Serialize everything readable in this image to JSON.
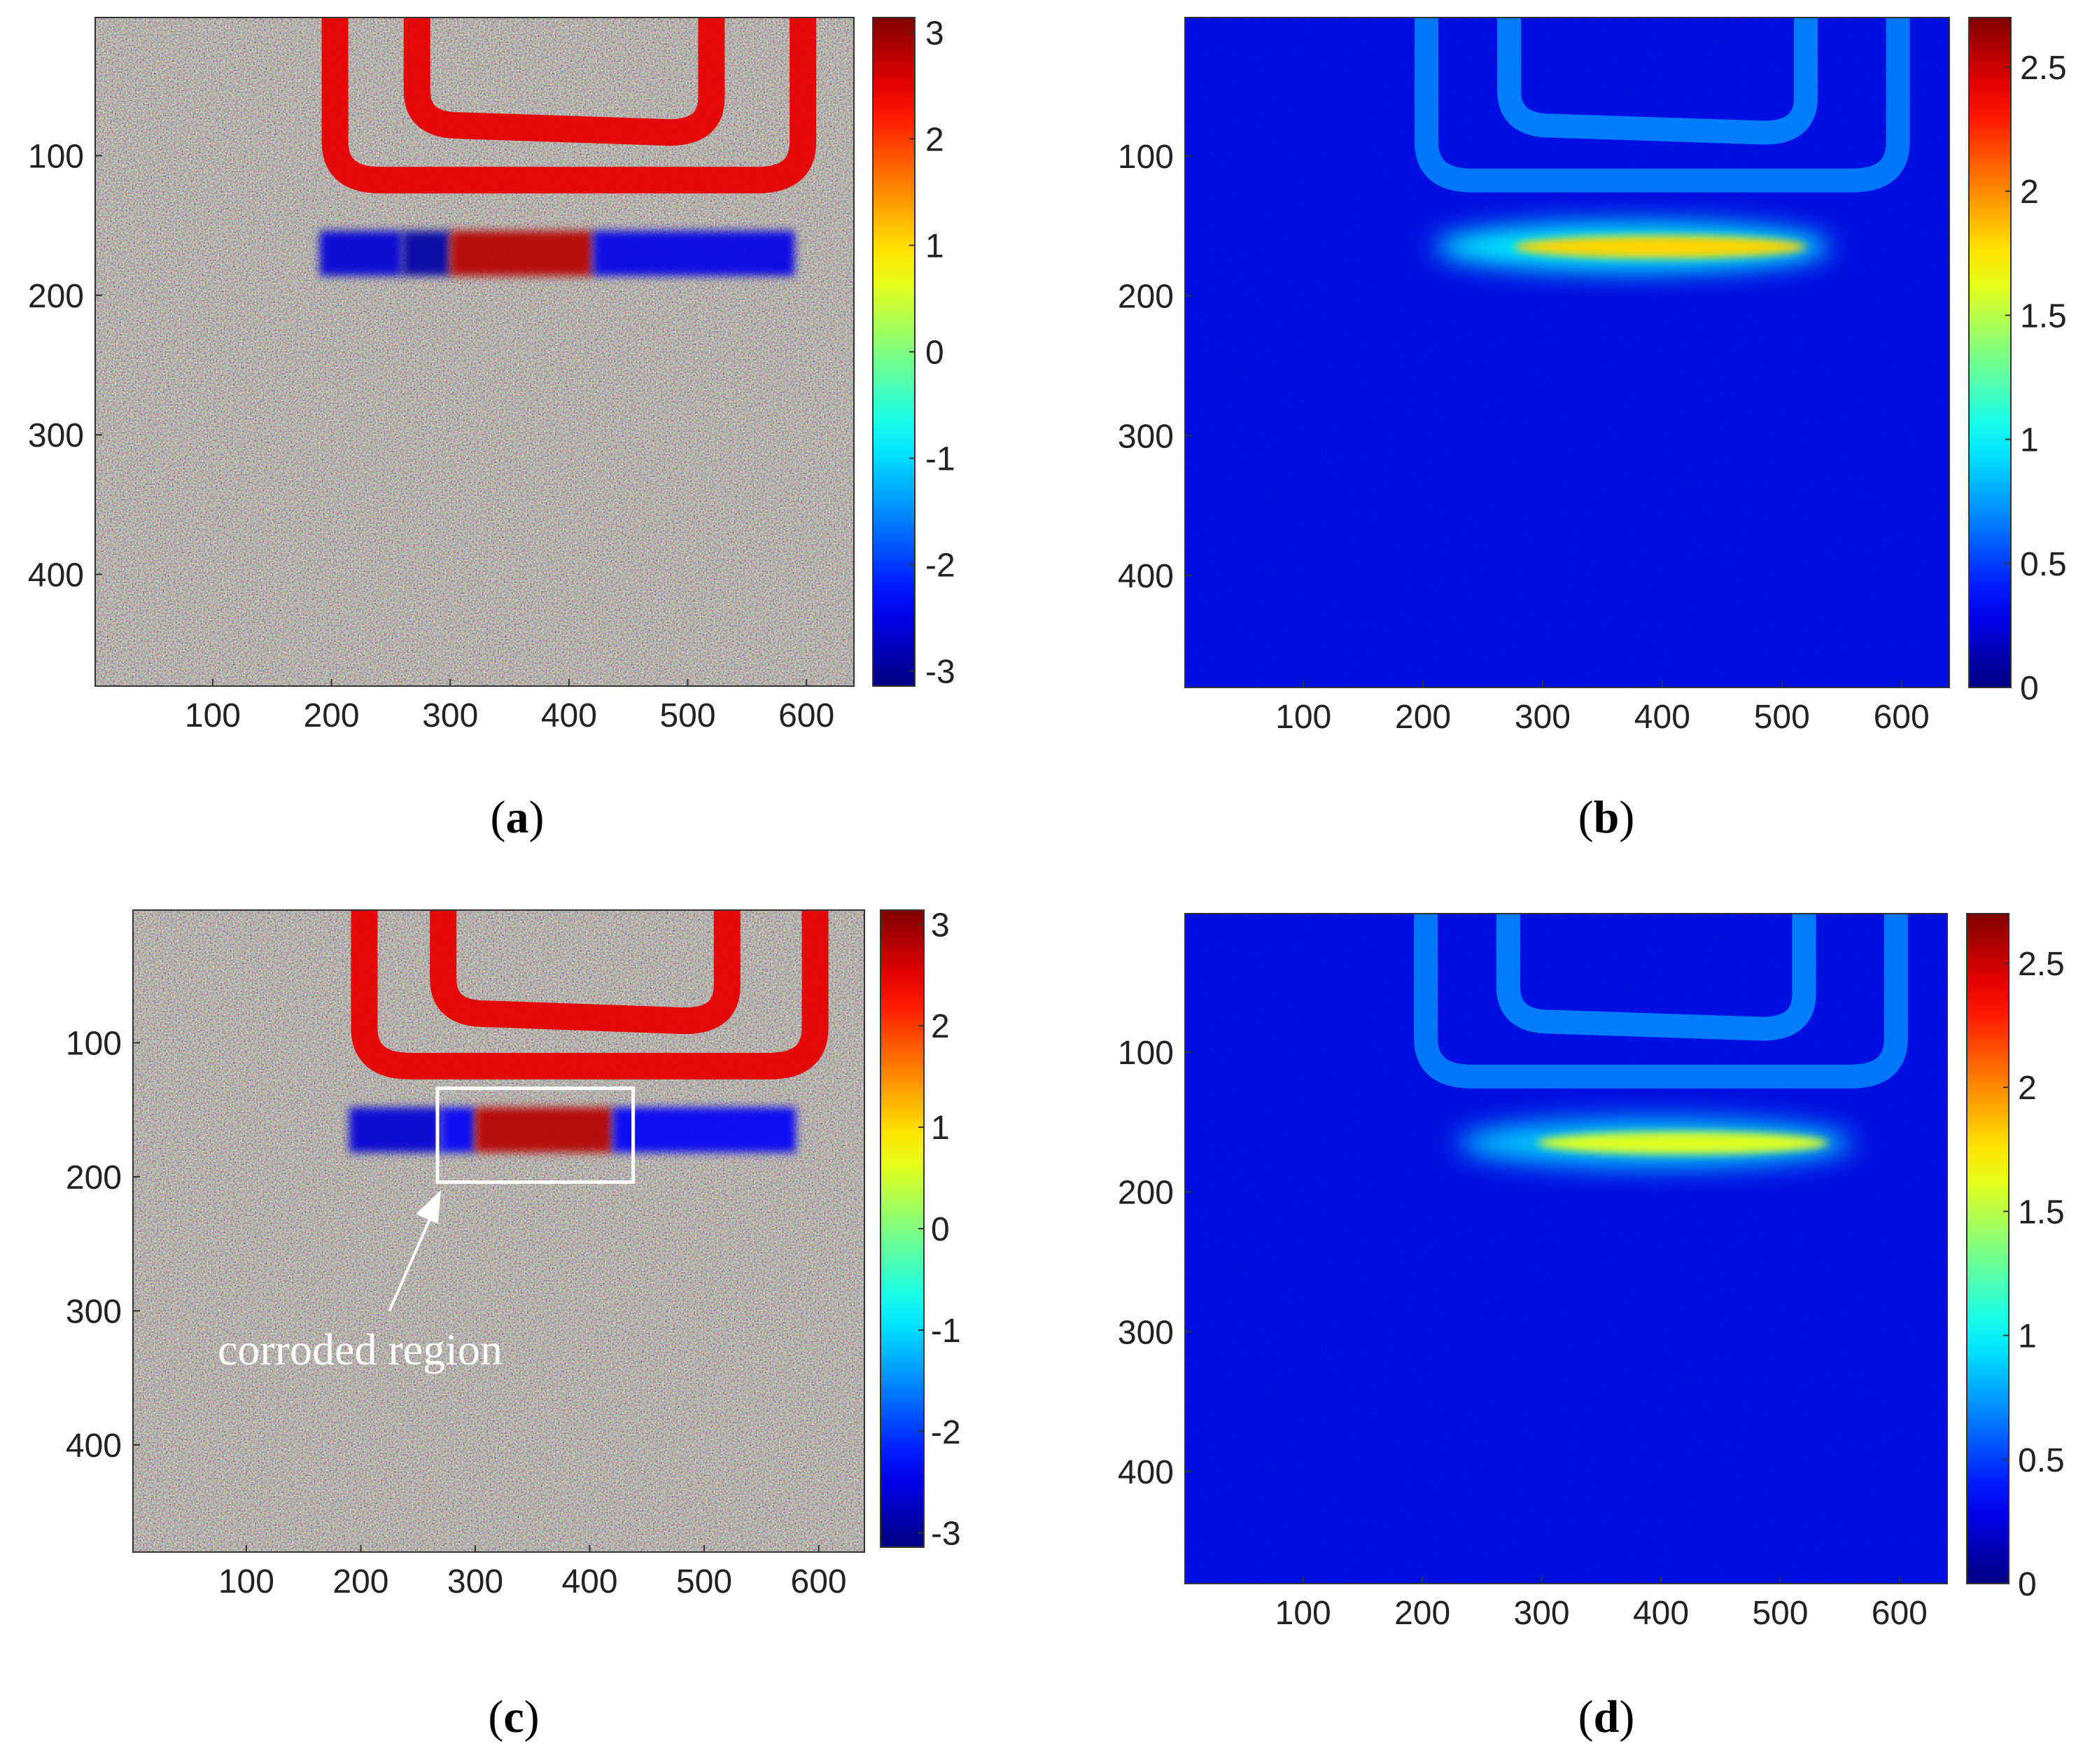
{
  "chart_data": [
    {
      "type": "heatmap",
      "panel": "a",
      "x_ticks": [
        100,
        200,
        300,
        400,
        500,
        600
      ],
      "y_ticks": [
        100,
        200,
        300,
        400
      ],
      "xlim": [
        1,
        640
      ],
      "ylim": [
        1,
        480
      ],
      "y_reversed": true,
      "colormap": "jet",
      "colorbar_range": [
        -3.14,
        3.14
      ],
      "colorbar_ticks": [
        "3",
        "2",
        "1",
        "0",
        "-1",
        "-2",
        "-3"
      ],
      "colorbar_values": [
        3,
        2,
        1,
        0,
        -1,
        -2,
        -3
      ],
      "features": {
        "coil": {
          "value": 2.5,
          "x": [
            200,
            600
          ],
          "y": [
            1,
            120
          ]
        },
        "band_center_y": 170,
        "band_segments": [
          {
            "x": [
              190,
              260
            ],
            "value": -2.6
          },
          {
            "x": [
              260,
              300
            ],
            "value": -2.9
          },
          {
            "x": [
              300,
              420
            ],
            "value": 2.8
          },
          {
            "x": [
              420,
              590
            ],
            "value": -2.5
          }
        ],
        "background": "noise"
      }
    },
    {
      "type": "heatmap",
      "panel": "b",
      "x_ticks": [
        100,
        200,
        300,
        400,
        500,
        600
      ],
      "y_ticks": [
        100,
        200,
        300,
        400
      ],
      "xlim": [
        1,
        640
      ],
      "ylim": [
        1,
        480
      ],
      "y_reversed": true,
      "colormap": "jet",
      "colorbar_range": [
        0,
        2.7
      ],
      "colorbar_ticks": [
        "2.5",
        "2",
        "1.5",
        "1",
        "0.5",
        "0"
      ],
      "colorbar_values": [
        2.5,
        2,
        1.5,
        1,
        0.5,
        0
      ],
      "features": {
        "coil": {
          "value": 0.7,
          "x": [
            200,
            600
          ],
          "y": [
            1,
            120
          ]
        },
        "band_center_y": 165,
        "band_x": [
          210,
          540
        ],
        "band_peak": 1.8,
        "background": 0.3
      }
    },
    {
      "type": "heatmap",
      "panel": "c",
      "x_ticks": [
        100,
        200,
        300,
        400,
        500,
        600
      ],
      "y_ticks": [
        100,
        200,
        300,
        400
      ],
      "xlim": [
        1,
        640
      ],
      "ylim": [
        1,
        480
      ],
      "y_reversed": true,
      "colormap": "jet",
      "colorbar_range": [
        -3.14,
        3.14
      ],
      "colorbar_ticks": [
        "3",
        "2",
        "1",
        "0",
        "-1",
        "-2",
        "-3"
      ],
      "colorbar_values": [
        3,
        2,
        1,
        0,
        -1,
        -2,
        -3
      ],
      "annotation": {
        "text": "corroded region",
        "box_x": [
          267,
          438
        ],
        "box_y": [
          134,
          204
        ],
        "arrow_to": [
          270,
          210
        ],
        "arrow_from": [
          225,
          300
        ],
        "text_at": [
          75,
          340
        ]
      },
      "features": {
        "coil": {
          "value": 2.5,
          "x": [
            200,
            600
          ],
          "y": [
            1,
            120
          ]
        },
        "band_center_y": 165,
        "band_segments": [
          {
            "x": [
              190,
              270
            ],
            "value": -2.6
          },
          {
            "x": [
              270,
              300
            ],
            "value": -2.4
          },
          {
            "x": [
              300,
              420
            ],
            "value": 2.8
          },
          {
            "x": [
              420,
              580
            ],
            "value": -2.4
          }
        ],
        "background": "noise"
      }
    },
    {
      "type": "heatmap",
      "panel": "d",
      "x_ticks": [
        100,
        200,
        300,
        400,
        500,
        600
      ],
      "y_ticks": [
        100,
        200,
        300,
        400
      ],
      "xlim": [
        1,
        640
      ],
      "ylim": [
        1,
        480
      ],
      "y_reversed": true,
      "colormap": "jet",
      "colorbar_range": [
        0,
        2.7
      ],
      "colorbar_ticks": [
        "2.5",
        "2",
        "1.5",
        "1",
        "0.5",
        "0"
      ],
      "colorbar_values": [
        2.5,
        2,
        1.5,
        1,
        0.5,
        0
      ],
      "features": {
        "coil": {
          "value": 0.7,
          "x": [
            200,
            600
          ],
          "y": [
            1,
            120
          ]
        },
        "band_center_y": 165,
        "band_x": [
          230,
          560
        ],
        "band_peak": 1.6,
        "background": 0.3
      }
    }
  ],
  "panel_labels": {
    "a": "a",
    "b": "b",
    "c": "c",
    "d": "d"
  }
}
